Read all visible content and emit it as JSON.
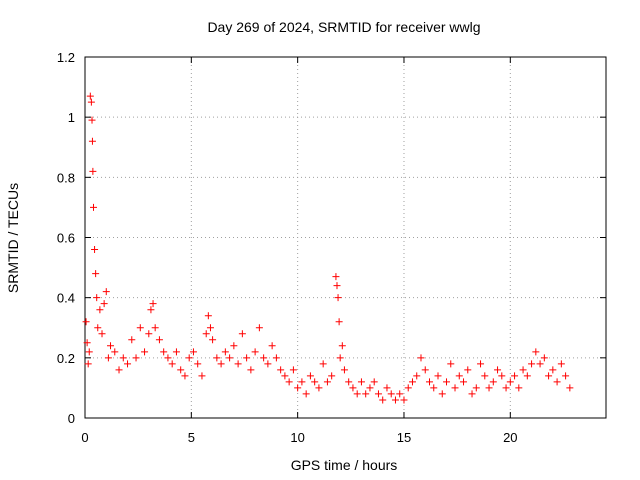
{
  "chart_data": {
    "type": "scatter",
    "title": "Day 269 of 2024, SRMTID for receiver wwlg",
    "xlabel": "GPS time / hours",
    "ylabel": "SRMTID / TECUs",
    "xlim": [
      0,
      24.5
    ],
    "ylim": [
      0,
      1.2
    ],
    "xticks": [
      0,
      5,
      10,
      15,
      20
    ],
    "xtick_labels": [
      "0",
      "5",
      "10",
      "15",
      "20"
    ],
    "yticks": [
      0,
      0.2,
      0.4,
      0.6,
      0.8,
      1,
      1.2
    ],
    "ytick_labels": [
      "0",
      "0.2",
      "0.4",
      "0.6",
      "0.8",
      "1",
      "1.2"
    ],
    "grid": true,
    "marker": "+",
    "series": [
      {
        "name": "SRMTID",
        "color": "#ff0000",
        "x": [
          0.05,
          0.1,
          0.15,
          0.2,
          0.25,
          0.3,
          0.33,
          0.35,
          0.37,
          0.4,
          0.45,
          0.5,
          0.55,
          0.6,
          0.7,
          0.8,
          0.9,
          1.0,
          1.1,
          1.2,
          1.4,
          1.6,
          1.8,
          2.0,
          2.2,
          2.4,
          2.6,
          2.8,
          3.0,
          3.1,
          3.2,
          3.3,
          3.5,
          3.7,
          3.9,
          4.1,
          4.3,
          4.5,
          4.7,
          4.9,
          5.1,
          5.3,
          5.5,
          5.7,
          5.8,
          5.9,
          6.0,
          6.2,
          6.4,
          6.6,
          6.8,
          7.0,
          7.2,
          7.4,
          7.6,
          7.8,
          8.0,
          8.2,
          8.4,
          8.6,
          8.8,
          9.0,
          9.2,
          9.4,
          9.6,
          9.8,
          10.0,
          10.2,
          10.4,
          10.6,
          10.8,
          11.0,
          11.2,
          11.4,
          11.6,
          11.8,
          11.85,
          11.9,
          11.95,
          12.0,
          12.1,
          12.2,
          12.4,
          12.6,
          12.8,
          13.0,
          13.2,
          13.4,
          13.6,
          13.8,
          14.0,
          14.2,
          14.4,
          14.6,
          14.8,
          15.0,
          15.2,
          15.4,
          15.6,
          15.8,
          16.0,
          16.2,
          16.4,
          16.6,
          16.8,
          17.0,
          17.2,
          17.4,
          17.6,
          17.8,
          18.0,
          18.2,
          18.4,
          18.6,
          18.8,
          19.0,
          19.2,
          19.4,
          19.6,
          19.8,
          20.0,
          20.2,
          20.4,
          20.6,
          20.8,
          21.0,
          21.2,
          21.4,
          21.6,
          21.8,
          22.0,
          22.2,
          22.4,
          22.6,
          22.8
        ],
        "y": [
          0.32,
          0.25,
          0.18,
          0.22,
          1.07,
          1.05,
          0.99,
          0.92,
          0.82,
          0.7,
          0.56,
          0.48,
          0.4,
          0.3,
          0.36,
          0.28,
          0.38,
          0.42,
          0.2,
          0.24,
          0.22,
          0.16,
          0.2,
          0.18,
          0.26,
          0.2,
          0.3,
          0.22,
          0.28,
          0.36,
          0.38,
          0.3,
          0.26,
          0.22,
          0.2,
          0.18,
          0.22,
          0.16,
          0.14,
          0.2,
          0.22,
          0.18,
          0.14,
          0.28,
          0.34,
          0.3,
          0.26,
          0.2,
          0.18,
          0.22,
          0.2,
          0.24,
          0.18,
          0.28,
          0.2,
          0.16,
          0.22,
          0.3,
          0.2,
          0.18,
          0.24,
          0.2,
          0.16,
          0.14,
          0.12,
          0.16,
          0.1,
          0.12,
          0.08,
          0.14,
          0.12,
          0.1,
          0.18,
          0.12,
          0.14,
          0.47,
          0.44,
          0.4,
          0.32,
          0.2,
          0.24,
          0.16,
          0.12,
          0.1,
          0.08,
          0.12,
          0.08,
          0.1,
          0.12,
          0.08,
          0.06,
          0.1,
          0.08,
          0.06,
          0.08,
          0.06,
          0.1,
          0.12,
          0.14,
          0.2,
          0.16,
          0.12,
          0.1,
          0.14,
          0.08,
          0.12,
          0.18,
          0.1,
          0.14,
          0.12,
          0.16,
          0.08,
          0.1,
          0.18,
          0.14,
          0.1,
          0.12,
          0.16,
          0.14,
          0.1,
          0.12,
          0.14,
          0.1,
          0.16,
          0.14,
          0.18,
          0.22,
          0.18,
          0.2,
          0.14,
          0.16,
          0.12,
          0.18,
          0.14,
          0.1
        ]
      }
    ]
  }
}
